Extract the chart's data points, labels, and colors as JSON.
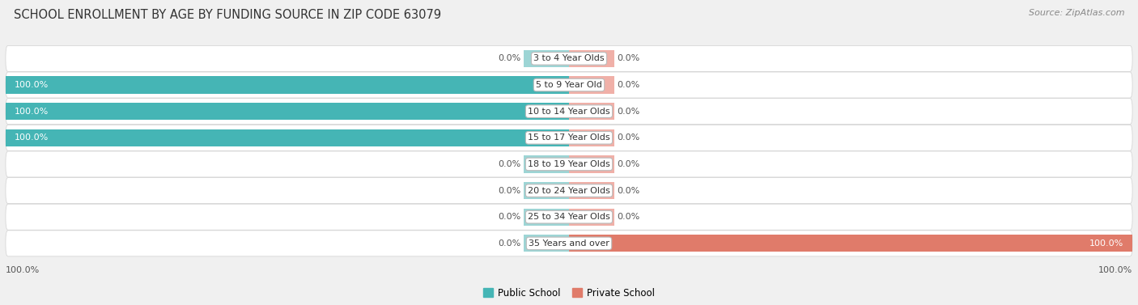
{
  "title": "SCHOOL ENROLLMENT BY AGE BY FUNDING SOURCE IN ZIP CODE 63079",
  "source": "Source: ZipAtlas.com",
  "categories": [
    "3 to 4 Year Olds",
    "5 to 9 Year Old",
    "10 to 14 Year Olds",
    "15 to 17 Year Olds",
    "18 to 19 Year Olds",
    "20 to 24 Year Olds",
    "25 to 34 Year Olds",
    "35 Years and over"
  ],
  "public_values": [
    0.0,
    100.0,
    100.0,
    100.0,
    0.0,
    0.0,
    0.0,
    0.0
  ],
  "private_values": [
    0.0,
    0.0,
    0.0,
    0.0,
    0.0,
    0.0,
    0.0,
    100.0
  ],
  "public_color": "#45b5b5",
  "private_color": "#e07b6a",
  "public_stub_color": "#9dd5d5",
  "private_stub_color": "#f0b0a8",
  "public_label_color_white": [
    false,
    true,
    true,
    true,
    false,
    false,
    false,
    false
  ],
  "private_label_color_white": [
    false,
    false,
    false,
    false,
    false,
    false,
    false,
    true
  ],
  "row_bg_color": "#ebebeb",
  "row_alt_bg_color": "#f5f5f5",
  "legend_public": "Public School",
  "legend_private": "Private School",
  "stub_pct": 8,
  "title_fontsize": 10.5,
  "label_fontsize": 8,
  "source_fontsize": 8
}
